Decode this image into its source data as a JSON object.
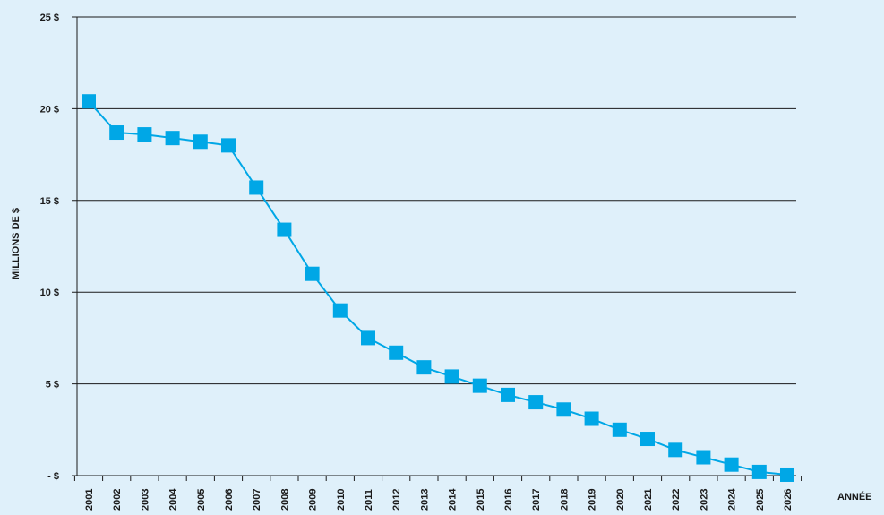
{
  "chart_data": {
    "type": "line",
    "xlabel": "ANNÉE",
    "ylabel": "MILLIONS DE $",
    "ylim": [
      0,
      25
    ],
    "y_ticks": [
      {
        "value": 0,
        "label": "- $"
      },
      {
        "value": 5,
        "label": "5 $"
      },
      {
        "value": 10,
        "label": "10 $"
      },
      {
        "value": 15,
        "label": "15 $"
      },
      {
        "value": 20,
        "label": "20 $"
      },
      {
        "value": 25,
        "label": "25 $"
      }
    ],
    "grid": true,
    "categories": [
      "2001",
      "2002",
      "2003",
      "2004",
      "2005",
      "2006",
      "2007",
      "2008",
      "2009",
      "2010",
      "2011",
      "2012",
      "2013",
      "2014",
      "2015",
      "2016",
      "2017",
      "2018",
      "2019",
      "2020",
      "2021",
      "2022",
      "2023",
      "2024",
      "2025",
      "2026"
    ],
    "series": [
      {
        "color": "#00a7e6",
        "values": [
          20.4,
          18.7,
          18.6,
          18.4,
          18.2,
          18.0,
          15.7,
          13.4,
          11.0,
          9.0,
          7.5,
          6.7,
          5.9,
          5.4,
          4.9,
          4.4,
          4.0,
          3.6,
          3.1,
          2.5,
          2.0,
          1.4,
          1.0,
          0.6,
          0.2,
          0.05
        ]
      }
    ],
    "background": "#dff0fa"
  }
}
